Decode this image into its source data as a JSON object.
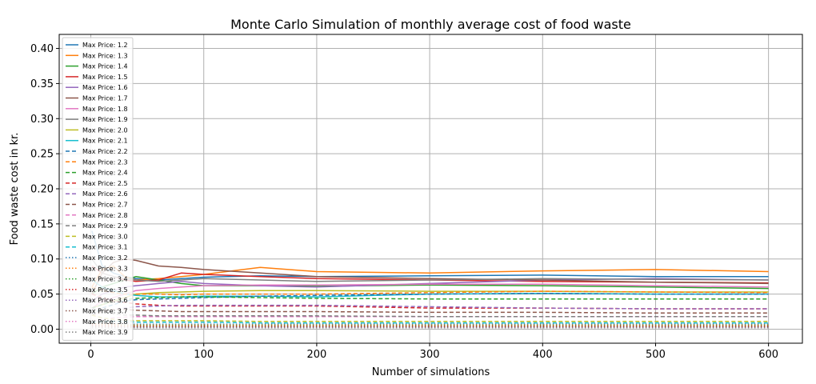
{
  "chart_data": {
    "type": "line",
    "title": "Monte Carlo Simulation of monthly average cost of food waste",
    "xlabel": "Number of simulations",
    "ylabel": "Food waste cost in kr.",
    "xlim": [
      -28,
      630
    ],
    "ylim": [
      -0.02,
      0.42
    ],
    "x_ticks": [
      0,
      100,
      200,
      300,
      400,
      500,
      600
    ],
    "y_ticks": [
      0.0,
      0.05,
      0.1,
      0.15,
      0.2,
      0.25,
      0.3,
      0.35,
      0.4
    ],
    "x_tick_labels": [
      "0",
      "100",
      "200",
      "300",
      "400",
      "500",
      "600"
    ],
    "y_tick_labels": [
      "0.00",
      "0.05",
      "0.10",
      "0.15",
      "0.20",
      "0.25",
      "0.30",
      "0.35",
      "0.40"
    ],
    "grid": true,
    "legend_position": "upper-left",
    "x": [
      1,
      10,
      20,
      30,
      40,
      60,
      80,
      100,
      150,
      200,
      300,
      400,
      500,
      600
    ],
    "series": [
      {
        "name": "Max Price: 1.2",
        "color": "#1f77b4",
        "dash": "solid",
        "values": [
          0.14,
          0.09,
          0.08,
          0.075,
          0.072,
          0.07,
          0.072,
          0.074,
          0.076,
          0.075,
          0.076,
          0.077,
          0.075,
          0.075
        ]
      },
      {
        "name": "Max Price: 1.3",
        "color": "#ff7f0e",
        "dash": "solid",
        "values": [
          0.06,
          0.085,
          0.09,
          0.075,
          0.07,
          0.072,
          0.075,
          0.078,
          0.088,
          0.082,
          0.08,
          0.083,
          0.085,
          0.082
        ]
      },
      {
        "name": "Max Price: 1.4",
        "color": "#2ca02c",
        "dash": "solid",
        "values": [
          0.05,
          0.06,
          0.065,
          0.07,
          0.075,
          0.07,
          0.065,
          0.062,
          0.062,
          0.061,
          0.063,
          0.062,
          0.06,
          0.058
        ]
      },
      {
        "name": "Max Price: 1.5",
        "color": "#d62728",
        "dash": "solid",
        "values": [
          0.09,
          0.08,
          0.075,
          0.07,
          0.068,
          0.07,
          0.08,
          0.078,
          0.075,
          0.072,
          0.07,
          0.068,
          0.067,
          0.066
        ]
      },
      {
        "name": "Max Price: 1.6",
        "color": "#9467bd",
        "dash": "solid",
        "values": [
          0.04,
          0.05,
          0.055,
          0.06,
          0.062,
          0.065,
          0.068,
          0.065,
          0.062,
          0.06,
          0.065,
          0.07,
          0.072,
          0.07
        ]
      },
      {
        "name": "Max Price: 1.7",
        "color": "#8c564b",
        "dash": "solid",
        "values": [
          0.05,
          0.08,
          0.095,
          0.1,
          0.098,
          0.09,
          0.088,
          0.085,
          0.08,
          0.075,
          0.072,
          0.07,
          0.067,
          0.065
        ]
      },
      {
        "name": "Max Price: 1.8",
        "color": "#e377c2",
        "dash": "solid",
        "values": [
          0.03,
          0.04,
          0.045,
          0.05,
          0.055,
          0.058,
          0.06,
          0.062,
          0.063,
          0.063,
          0.064,
          0.064,
          0.062,
          0.06
        ]
      },
      {
        "name": "Max Price: 1.9",
        "color": "#7f7f7f",
        "dash": "solid",
        "values": [
          0.1,
          0.08,
          0.075,
          0.072,
          0.07,
          0.068,
          0.07,
          0.072,
          0.07,
          0.068,
          0.07,
          0.072,
          0.071,
          0.07
        ]
      },
      {
        "name": "Max Price: 2.0",
        "color": "#bcbd22",
        "dash": "solid",
        "values": [
          0.03,
          0.035,
          0.04,
          0.045,
          0.05,
          0.052,
          0.053,
          0.054,
          0.055,
          0.055,
          0.054,
          0.054,
          0.053,
          0.053
        ]
      },
      {
        "name": "Max Price: 2.1",
        "color": "#17becf",
        "dash": "solid",
        "values": [
          0.07,
          0.06,
          0.055,
          0.05,
          0.048,
          0.046,
          0.046,
          0.047,
          0.047,
          0.046,
          0.05,
          0.051,
          0.05,
          0.05
        ]
      },
      {
        "name": "Max Price: 2.2",
        "color": "#1f77b4",
        "dash": "dashed",
        "values": [
          0.02,
          0.03,
          0.035,
          0.04,
          0.042,
          0.043,
          0.044,
          0.045,
          0.047,
          0.048,
          0.05,
          0.051,
          0.05,
          0.05
        ]
      },
      {
        "name": "Max Price: 2.3",
        "color": "#ff7f0e",
        "dash": "dashed",
        "values": [
          0.06,
          0.055,
          0.052,
          0.05,
          0.05,
          0.05,
          0.049,
          0.05,
          0.05,
          0.05,
          0.052,
          0.054,
          0.053,
          0.052
        ]
      },
      {
        "name": "Max Price: 2.4",
        "color": "#2ca02c",
        "dash": "dashed",
        "values": [
          0.03,
          0.035,
          0.04,
          0.042,
          0.044,
          0.045,
          0.046,
          0.046,
          0.045,
          0.044,
          0.043,
          0.043,
          0.043,
          0.043
        ]
      },
      {
        "name": "Max Price: 2.5",
        "color": "#d62728",
        "dash": "dashed",
        "values": [
          0.05,
          0.045,
          0.04,
          0.038,
          0.036,
          0.034,
          0.033,
          0.033,
          0.033,
          0.033,
          0.03,
          0.03,
          0.029,
          0.029
        ]
      },
      {
        "name": "Max Price: 2.6",
        "color": "#9467bd",
        "dash": "dashed",
        "values": [
          0.02,
          0.025,
          0.028,
          0.03,
          0.032,
          0.033,
          0.034,
          0.034,
          0.034,
          0.034,
          0.032,
          0.03,
          0.029,
          0.029
        ]
      },
      {
        "name": "Max Price: 2.7",
        "color": "#8c564b",
        "dash": "dashed",
        "values": [
          0.02,
          0.025,
          0.028,
          0.028,
          0.027,
          0.026,
          0.025,
          0.025,
          0.025,
          0.025,
          0.024,
          0.024,
          0.023,
          0.023
        ]
      },
      {
        "name": "Max Price: 2.8",
        "color": "#e377c2",
        "dash": "dashed",
        "values": [
          0.01,
          0.014,
          0.016,
          0.017,
          0.018,
          0.018,
          0.018,
          0.018,
          0.018,
          0.018,
          0.018,
          0.018,
          0.018,
          0.018
        ]
      },
      {
        "name": "Max Price: 2.9",
        "color": "#7f7f7f",
        "dash": "dashed",
        "values": [
          0.03,
          0.025,
          0.022,
          0.02,
          0.02,
          0.019,
          0.019,
          0.019,
          0.019,
          0.019,
          0.018,
          0.018,
          0.018,
          0.018
        ]
      },
      {
        "name": "Max Price: 3.0",
        "color": "#bcbd22",
        "dash": "dashed",
        "values": [
          0.02,
          0.016,
          0.014,
          0.013,
          0.012,
          0.012,
          0.012,
          0.012,
          0.011,
          0.011,
          0.011,
          0.011,
          0.011,
          0.011
        ]
      },
      {
        "name": "Max Price: 3.1",
        "color": "#17becf",
        "dash": "dashed",
        "values": [
          0.01,
          0.011,
          0.011,
          0.011,
          0.01,
          0.01,
          0.01,
          0.01,
          0.009,
          0.009,
          0.009,
          0.009,
          0.009,
          0.009
        ]
      },
      {
        "name": "Max Price: 3.2",
        "color": "#1f77b4",
        "dash": "dotted",
        "values": [
          0.005,
          0.006,
          0.007,
          0.007,
          0.007,
          0.007,
          0.007,
          0.007,
          0.007,
          0.007,
          0.007,
          0.007,
          0.007,
          0.007
        ]
      },
      {
        "name": "Max Price: 3.3",
        "color": "#ff7f0e",
        "dash": "dotted",
        "values": [
          0.008,
          0.007,
          0.007,
          0.006,
          0.006,
          0.006,
          0.006,
          0.006,
          0.006,
          0.006,
          0.006,
          0.006,
          0.006,
          0.006
        ]
      },
      {
        "name": "Max Price: 3.4",
        "color": "#2ca02c",
        "dash": "dotted",
        "values": [
          0.004,
          0.005,
          0.005,
          0.005,
          0.005,
          0.005,
          0.005,
          0.005,
          0.005,
          0.005,
          0.005,
          0.005,
          0.005,
          0.005
        ]
      },
      {
        "name": "Max Price: 3.5",
        "color": "#d62728",
        "dash": "dotted",
        "values": [
          0.006,
          0.005,
          0.005,
          0.004,
          0.004,
          0.004,
          0.004,
          0.004,
          0.004,
          0.004,
          0.004,
          0.004,
          0.004,
          0.004
        ]
      },
      {
        "name": "Max Price: 3.6",
        "color": "#9467bd",
        "dash": "dotted",
        "values": [
          0.003,
          0.003,
          0.003,
          0.003,
          0.003,
          0.003,
          0.003,
          0.003,
          0.003,
          0.003,
          0.003,
          0.003,
          0.003,
          0.003
        ]
      },
      {
        "name": "Max Price: 3.7",
        "color": "#8c564b",
        "dash": "dotted",
        "values": [
          0.004,
          0.003,
          0.003,
          0.003,
          0.003,
          0.003,
          0.003,
          0.003,
          0.003,
          0.003,
          0.003,
          0.003,
          0.003,
          0.003
        ]
      },
      {
        "name": "Max Price: 3.8",
        "color": "#e377c2",
        "dash": "dotted",
        "values": [
          0.002,
          0.002,
          0.002,
          0.002,
          0.002,
          0.002,
          0.002,
          0.002,
          0.002,
          0.002,
          0.002,
          0.002,
          0.002,
          0.002
        ]
      },
      {
        "name": "Max Price: 3.9",
        "color": "#7f7f7f",
        "dash": "dotted",
        "values": [
          0.002,
          0.002,
          0.002,
          0.002,
          0.002,
          0.002,
          0.002,
          0.002,
          0.002,
          0.002,
          0.002,
          0.002,
          0.002,
          0.002
        ]
      }
    ]
  }
}
